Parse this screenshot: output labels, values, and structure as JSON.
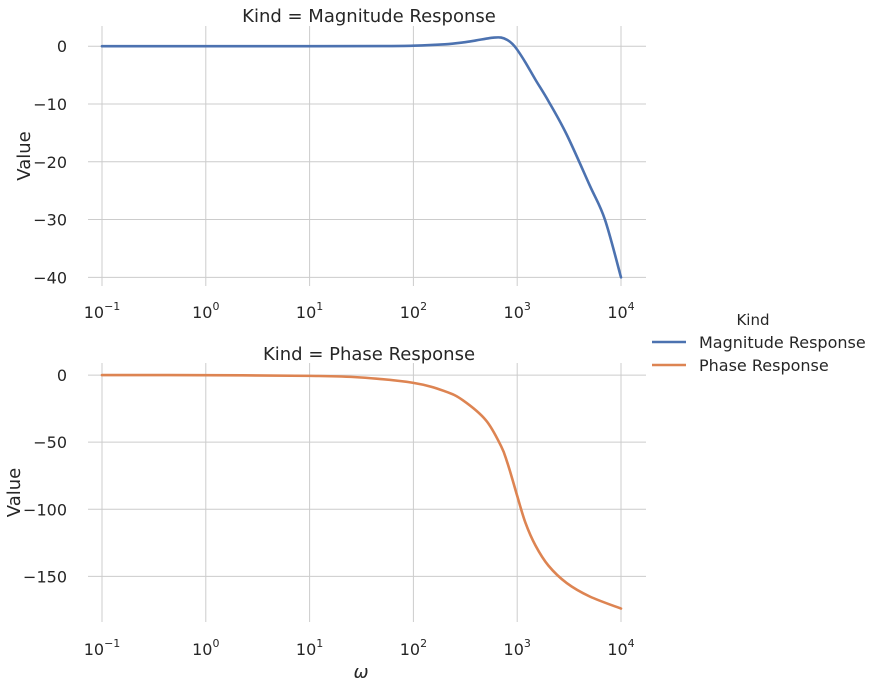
{
  "chart_data": {
    "type": "line",
    "xscale": "log",
    "legend": {
      "title": "Kind",
      "placement": "right",
      "entries": [
        {
          "label": "Magnitude Response",
          "color": "#4c72b0"
        },
        {
          "label": "Phase Response",
          "color": "#dd8452"
        }
      ]
    },
    "grid": true,
    "xlabel": "ω",
    "x_ticks": [
      {
        "value": 0.1,
        "base": "10",
        "exp": "−1"
      },
      {
        "value": 1,
        "base": "10",
        "exp": "0"
      },
      {
        "value": 10,
        "base": "10",
        "exp": "1"
      },
      {
        "value": 100,
        "base": "10",
        "exp": "2"
      },
      {
        "value": 1000,
        "base": "10",
        "exp": "3"
      },
      {
        "value": 10000,
        "base": "10",
        "exp": "4"
      }
    ],
    "panels": [
      {
        "title": "Kind = Magnitude Response",
        "ylabel": "Value",
        "xlabel": "",
        "xlim": [
          0.1,
          10000
        ],
        "ylim": [
          -41.5,
          3.5
        ],
        "y_ticks": [
          {
            "value": 0,
            "label": "0"
          },
          {
            "value": -10,
            "label": "−10"
          },
          {
            "value": -20,
            "label": "−20"
          },
          {
            "value": -30,
            "label": "−30"
          },
          {
            "value": -40,
            "label": "−40"
          }
        ],
        "series": {
          "name": "Magnitude Response",
          "color": "#4c72b0",
          "x": [
            0.1,
            1,
            10,
            50,
            100,
            200,
            300,
            400,
            500,
            600,
            700,
            800,
            900,
            1000,
            1200,
            1500,
            2000,
            3000,
            5000,
            7000,
            10000
          ],
          "y": [
            0,
            0,
            0,
            0.02,
            0.09,
            0.33,
            0.65,
            1.0,
            1.3,
            1.5,
            1.5,
            1.1,
            0.4,
            -0.6,
            -2.8,
            -5.8,
            -9.5,
            -15.3,
            -24.1,
            -30.0,
            -40.0
          ]
        }
      },
      {
        "title": "Kind = Phase Response",
        "ylabel": "Value",
        "xlabel": "ω",
        "xlim": [
          0.1,
          10000
        ],
        "ylim": [
          -184,
          9
        ],
        "y_ticks": [
          {
            "value": 0,
            "label": "0"
          },
          {
            "value": -50,
            "label": "−50"
          },
          {
            "value": -100,
            "label": "−100"
          },
          {
            "value": -150,
            "label": "−150"
          }
        ],
        "series": {
          "name": "Phase Response",
          "color": "#dd8452",
          "x": [
            0.1,
            1,
            10,
            30,
            100,
            200,
            300,
            500,
            700,
            800,
            900,
            1000,
            1200,
            1500,
            2000,
            3000,
            5000,
            10000
          ],
          "y": [
            0,
            -0.06,
            -0.6,
            -1.7,
            -5.8,
            -12.0,
            -18.8,
            -33.7,
            -53.0,
            -64.8,
            -77.8,
            -90.0,
            -110,
            -127,
            -142,
            -155,
            -165,
            -174
          ]
        }
      }
    ]
  }
}
